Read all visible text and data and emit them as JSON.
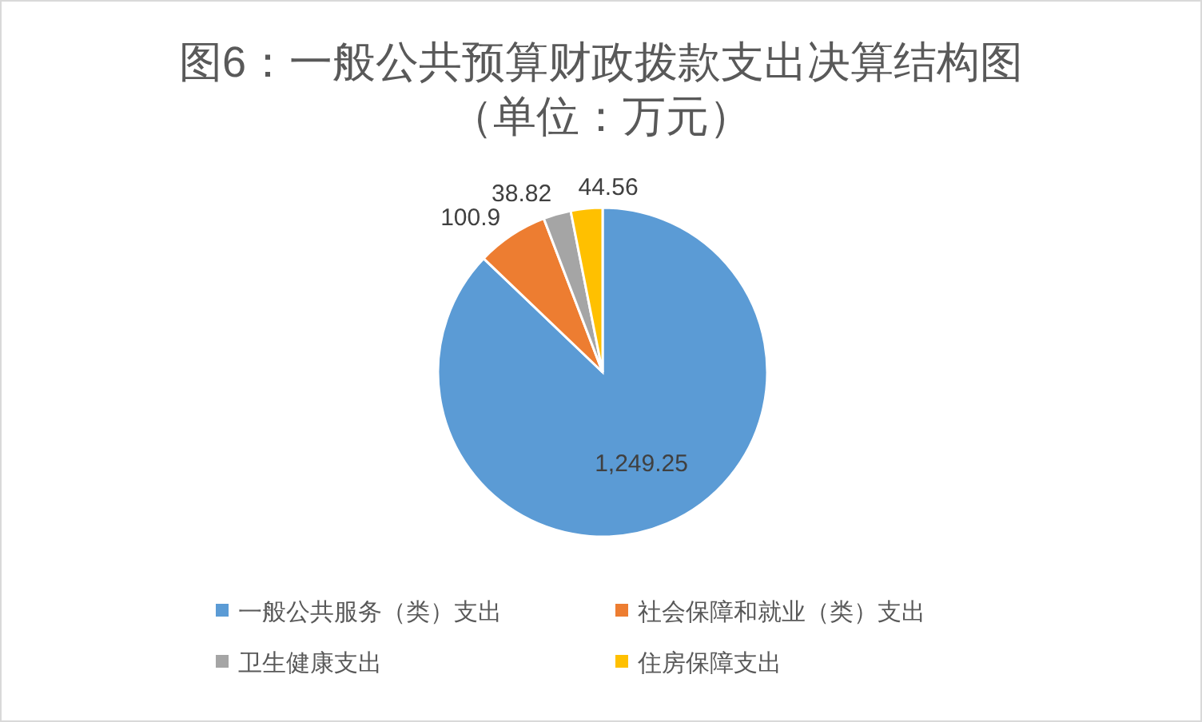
{
  "chart_data": {
    "type": "pie",
    "title": "图6：一般公共预算财政拨款支出决算结构图",
    "subtitle": "（单位：万元）",
    "categories": [
      "一般公共服务（类）支出",
      "社会保障和就业（类）支出",
      "卫生健康支出",
      "住房保障支出"
    ],
    "values": [
      1249.25,
      100.9,
      38.82,
      44.56
    ],
    "colors": [
      "#5b9bd5",
      "#ed7d31",
      "#a5a5a5",
      "#ffc000"
    ],
    "value_labels": [
      "1,249.25",
      "100.9",
      "38.82",
      "44.56"
    ],
    "legend": "bottom"
  }
}
